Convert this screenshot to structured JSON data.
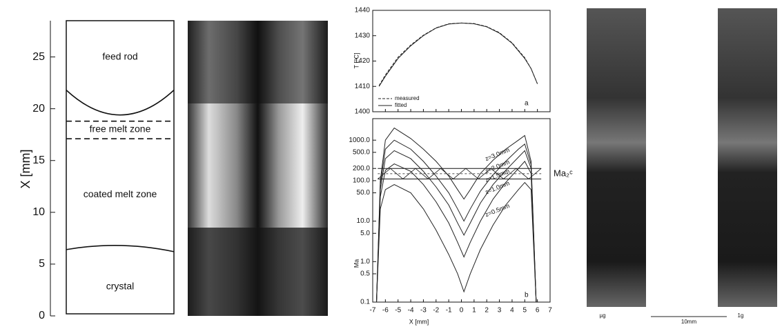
{
  "chart_data": [
    {
      "type": "schematic",
      "ylabel": "X [mm]",
      "ylim": [
        0,
        28.5
      ],
      "yticks": [
        0,
        5,
        10,
        15,
        20,
        25
      ],
      "regions": [
        "feed rod",
        "free melt zone",
        "coated melt zone",
        "crystal"
      ],
      "region_positions": [
        25,
        18,
        11.7,
        2.8
      ],
      "boundaries": [
        [
          21.8,
          19.4,
          21.8
        ],
        [
          18.8,
          18.8
        ],
        [
          17.1,
          17.1
        ],
        [
          6.4,
          6.8,
          6.2
        ]
      ],
      "boundary_styles": [
        "solid",
        "dashed",
        "dashed",
        "solid"
      ]
    },
    {
      "type": "line",
      "ylabel": "T [°C]",
      "xlim": [
        -7,
        7
      ],
      "xticks": [
        -7,
        -6,
        -5,
        -4,
        -3,
        -2,
        -1,
        0,
        1,
        2,
        3,
        4,
        5,
        6,
        7
      ],
      "ylim": [
        1400,
        1440
      ],
      "yticks": [
        1400,
        1410,
        1420,
        1430,
        1440
      ],
      "annotation": "a",
      "x": [
        -6.5,
        -6,
        -5,
        -4,
        -3,
        -2,
        -1,
        0,
        1,
        2,
        3,
        4,
        5,
        5.5,
        6
      ],
      "series": [
        {
          "name": "measured",
          "style": "dashed",
          "color": "#222",
          "values": [
            1410.3,
            1414.5,
            1421.5,
            1426.3,
            1430.2,
            1433.1,
            1434.7,
            1435,
            1434.8,
            1433.6,
            1431.2,
            1427.2,
            1421.3,
            1417,
            1411
          ]
        },
        {
          "name": "fitted",
          "style": "solid",
          "color": "#222",
          "values": [
            1410,
            1414,
            1421,
            1426,
            1430,
            1433,
            1434.6,
            1435,
            1434.7,
            1433.5,
            1431,
            1427,
            1421,
            1417,
            1411
          ]
        }
      ]
    },
    {
      "type": "logline",
      "ylabel": "Ma",
      "xlabel": "X [mm]",
      "xlim": [
        -7,
        7
      ],
      "xticks": [
        -7,
        -6,
        -5,
        -4,
        -3,
        -2,
        -1,
        0,
        1,
        2,
        3,
        4,
        5,
        6,
        7
      ],
      "ylim": [
        0.1,
        3400
      ],
      "log_scale": true,
      "yticks": [
        0.1,
        0.5,
        {
          "value": 1,
          "label": "1.0"
        },
        {
          "value": 5,
          "label": "5.0"
        },
        {
          "value": 10,
          "label": "10.0"
        },
        {
          "value": 50,
          "label": "50.0"
        },
        {
          "value": 100,
          "label": "100.0"
        },
        {
          "value": 200,
          "label": "200.0"
        },
        {
          "value": 500,
          "label": "500.0"
        },
        {
          "value": 1000,
          "label": "1000.0"
        }
      ],
      "annotation": "b",
      "critical_label": "Ma₂ᶜ",
      "critical_band": [
        110,
        200
      ],
      "x": [
        -6.7,
        -6.4,
        -6,
        -5.3,
        -4,
        -3,
        -2,
        -1,
        -0.3,
        0.2,
        0.7,
        1.5,
        2.5,
        3.5,
        4.5,
        5,
        5.5,
        5.9
      ],
      "series": [
        {
          "name": "z=3.0mm",
          "color": "#222",
          "values": [
            0.1,
            100,
            1000,
            2000,
            1100,
            600,
            300,
            130,
            60,
            35,
            60,
            150,
            320,
            600,
            1000,
            1300,
            300,
            0.1
          ]
        },
        {
          "name": "z=2.0mm",
          "color": "#222",
          "values": [
            0.1,
            80,
            600,
            1000,
            600,
            300,
            130,
            50,
            20,
            10,
            20,
            55,
            140,
            300,
            600,
            800,
            250,
            0.1
          ]
        },
        {
          "name": "z=1.5mm",
          "color": "#222",
          "values": [
            0.1,
            60,
            350,
            550,
            350,
            170,
            70,
            25,
            9,
            4.5,
            9,
            28,
            80,
            180,
            380,
            550,
            200,
            0.1
          ]
        },
        {
          "name": "z=1.0mm",
          "color": "#222",
          "values": [
            0.1,
            40,
            180,
            260,
            170,
            80,
            30,
            9,
            3,
            1.3,
            3,
            10,
            35,
            90,
            200,
            300,
            150,
            0.1
          ]
        },
        {
          "name": "z=0.5mm",
          "color": "#222",
          "values": [
            0.1,
            20,
            60,
            80,
            50,
            20,
            6,
            1.5,
            0.5,
            0.18,
            0.5,
            2,
            8,
            25,
            60,
            90,
            60,
            0.1
          ]
        }
      ]
    }
  ],
  "photos": {
    "labels": [
      "µg",
      "1g"
    ],
    "scale_bar": "10mm"
  }
}
